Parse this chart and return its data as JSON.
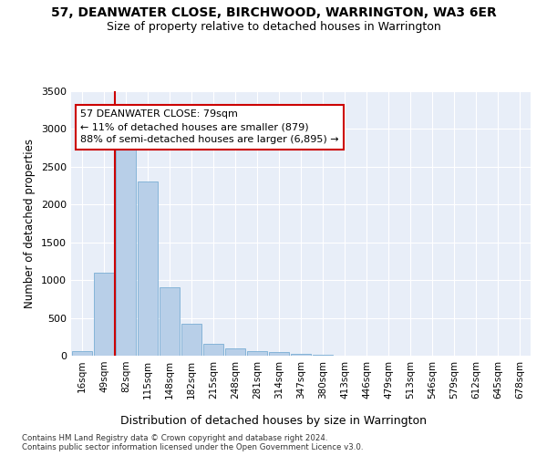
{
  "title_line1": "57, DEANWATER CLOSE, BIRCHWOOD, WARRINGTON, WA3 6ER",
  "title_line2": "Size of property relative to detached houses in Warrington",
  "xlabel": "Distribution of detached houses by size in Warrington",
  "ylabel": "Number of detached properties",
  "footnote": "Contains HM Land Registry data © Crown copyright and database right 2024.\nContains public sector information licensed under the Open Government Licence v3.0.",
  "bin_labels": [
    "16sqm",
    "49sqm",
    "82sqm",
    "115sqm",
    "148sqm",
    "182sqm",
    "215sqm",
    "248sqm",
    "281sqm",
    "314sqm",
    "347sqm",
    "380sqm",
    "413sqm",
    "446sqm",
    "479sqm",
    "513sqm",
    "546sqm",
    "579sqm",
    "612sqm",
    "645sqm",
    "678sqm"
  ],
  "bar_values": [
    55,
    1100,
    2750,
    2300,
    900,
    420,
    160,
    100,
    65,
    50,
    30,
    10,
    5,
    2,
    1,
    0,
    0,
    0,
    0,
    0,
    0
  ],
  "bar_color": "#b8cfe8",
  "bar_edge_color": "#7aadd4",
  "vline_x": 2.0,
  "vline_color": "#cc0000",
  "ylim": [
    0,
    3500
  ],
  "yticks": [
    0,
    500,
    1000,
    1500,
    2000,
    2500,
    3000,
    3500
  ],
  "annotation_text": "57 DEANWATER CLOSE: 79sqm\n← 11% of detached houses are smaller (879)\n88% of semi-detached houses are larger (6,895) →",
  "annotation_box_color": "#ffffff",
  "annotation_box_edge": "#cc0000",
  "background_color": "#e8eef8",
  "title1_fontsize": 10,
  "title2_fontsize": 9
}
